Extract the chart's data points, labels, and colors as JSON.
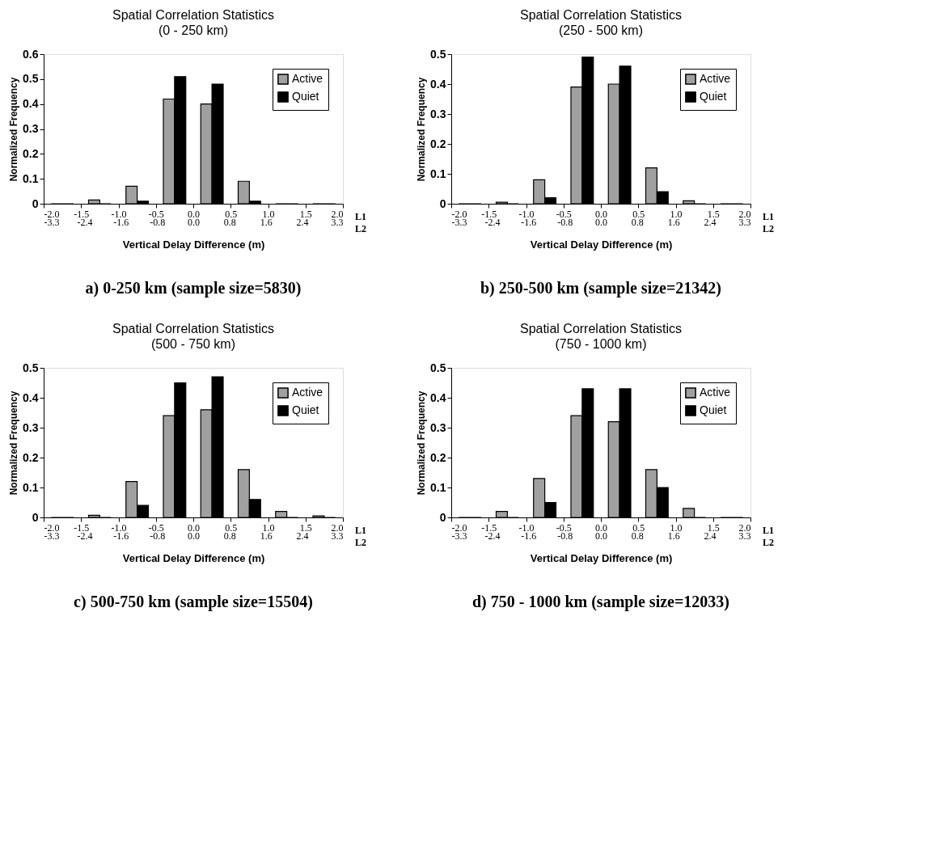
{
  "chart_data": [
    {
      "type": "histogram",
      "title": "Spatial Correlation Statistics",
      "subtitle": "(0 - 250 km)",
      "xlabel": "Vertical Delay Difference (m)",
      "ylabel": "Normalized Frequency",
      "bins": [
        -2.0,
        -1.5,
        -1.0,
        -0.5,
        0.0,
        0.5,
        1.0,
        1.5,
        2.0
      ],
      "series": [
        {
          "name": "Active",
          "color": "#a0a0a0",
          "values": [
            0,
            0.015,
            0.07,
            0.42,
            0.4,
            0.09,
            0,
            0
          ]
        },
        {
          "name": "Quiet",
          "color": "#000000",
          "values": [
            0,
            0,
            0.01,
            0.51,
            0.48,
            0.01,
            0,
            0
          ]
        }
      ],
      "xlim": [
        -2.0,
        2.0
      ],
      "ylim": [
        0,
        0.6
      ],
      "yticks": [
        0,
        0.1,
        0.2,
        0.3,
        0.4,
        0.5,
        0.6
      ],
      "xticks": [
        {
          "value": -2.0,
          "label": "-2.0"
        },
        {
          "value": -1.5,
          "label": "-1.5"
        },
        {
          "value": -1.0,
          "label": "-1.0"
        },
        {
          "value": -0.5,
          "label": "-0.5"
        },
        {
          "value": 0.0,
          "label": "0.0"
        },
        {
          "value": 0.5,
          "label": "0.5"
        },
        {
          "value": 1.0,
          "label": "1.0"
        },
        {
          "value": 1.5,
          "label": "1.5"
        },
        {
          "value": 2.0,
          "label": "2.0"
        }
      ],
      "x2lim": [
        -3.3,
        3.3
      ],
      "x2ticks": [
        {
          "value": -3.3,
          "label": "-3.3"
        },
        {
          "value": -2.4,
          "label": "-2.4"
        },
        {
          "value": -1.6,
          "label": "-1.6"
        },
        {
          "value": -0.8,
          "label": "-0.8"
        },
        {
          "value": 0.0,
          "label": "0.0"
        },
        {
          "value": 0.8,
          "label": "0.8"
        },
        {
          "value": 1.6,
          "label": "1.6"
        },
        {
          "value": 2.4,
          "label": "2.4"
        },
        {
          "value": 3.3,
          "label": "3.3"
        }
      ],
      "annotations": [
        "L1",
        "L2",
        "a) 0-250 km (sample size=5830)"
      ],
      "legend": "top right",
      "grid": false
    },
    {
      "type": "histogram",
      "title": "Spatial Correlation Statistics",
      "subtitle": "(250 - 500 km)",
      "xlabel": "Vertical Delay Difference (m)",
      "ylabel": "Normalized Frequency",
      "bins": [
        -2.0,
        -1.5,
        -1.0,
        -0.5,
        0.0,
        0.5,
        1.0,
        1.5,
        2.0
      ],
      "series": [
        {
          "name": "Active",
          "color": "#a0a0a0",
          "values": [
            0,
            0.005,
            0.08,
            0.39,
            0.4,
            0.12,
            0.01,
            0
          ]
        },
        {
          "name": "Quiet",
          "color": "#000000",
          "values": [
            0,
            0,
            0.02,
            0.49,
            0.46,
            0.04,
            0,
            0
          ]
        }
      ],
      "xlim": [
        -2.0,
        2.0
      ],
      "ylim": [
        0,
        0.5
      ],
      "yticks": [
        0,
        0.1,
        0.2,
        0.3,
        0.4,
        0.5
      ],
      "xticks": [
        {
          "value": -2.0,
          "label": "-2.0"
        },
        {
          "value": -1.5,
          "label": "-1.5"
        },
        {
          "value": -1.0,
          "label": "-1.0"
        },
        {
          "value": -0.5,
          "label": "-0.5"
        },
        {
          "value": 0.0,
          "label": "0.0"
        },
        {
          "value": 0.5,
          "label": "0.5"
        },
        {
          "value": 1.0,
          "label": "1.0"
        },
        {
          "value": 1.5,
          "label": "1.5"
        },
        {
          "value": 2.0,
          "label": "2.0"
        }
      ],
      "x2lim": [
        -3.3,
        3.3
      ],
      "x2ticks": [
        {
          "value": -3.3,
          "label": "-3.3"
        },
        {
          "value": -2.4,
          "label": "-2.4"
        },
        {
          "value": -1.6,
          "label": "-1.6"
        },
        {
          "value": -0.8,
          "label": "-0.8"
        },
        {
          "value": 0.0,
          "label": "0.0"
        },
        {
          "value": 0.8,
          "label": "0.8"
        },
        {
          "value": 1.6,
          "label": "1.6"
        },
        {
          "value": 2.4,
          "label": "2.4"
        },
        {
          "value": 3.3,
          "label": "3.3"
        }
      ],
      "annotations": [
        "L1",
        "L2",
        "b) 250-500 km (sample size=21342)"
      ],
      "legend": "top right",
      "grid": false
    },
    {
      "type": "histogram",
      "title": "Spatial Correlation Statistics",
      "subtitle": "(500 - 750 km)",
      "xlabel": "Vertical Delay Difference (m)",
      "ylabel": "Normalized Frequency",
      "bins": [
        -2.0,
        -1.5,
        -1.0,
        -0.5,
        0.0,
        0.5,
        1.0,
        1.5,
        2.0
      ],
      "series": [
        {
          "name": "Active",
          "color": "#a0a0a0",
          "values": [
            0,
            0.007,
            0.12,
            0.34,
            0.36,
            0.16,
            0.02,
            0.005
          ]
        },
        {
          "name": "Quiet",
          "color": "#000000",
          "values": [
            0,
            0,
            0.04,
            0.45,
            0.47,
            0.06,
            0,
            0
          ]
        }
      ],
      "xlim": [
        -2.0,
        2.0
      ],
      "ylim": [
        0,
        0.5
      ],
      "yticks": [
        0,
        0.1,
        0.2,
        0.3,
        0.4,
        0.5
      ],
      "xticks": [
        {
          "value": -2.0,
          "label": "-2.0"
        },
        {
          "value": -1.5,
          "label": "-1.5"
        },
        {
          "value": -1.0,
          "label": "-1.0"
        },
        {
          "value": -0.5,
          "label": "-0.5"
        },
        {
          "value": 0.0,
          "label": "0.0"
        },
        {
          "value": 0.5,
          "label": "0.5"
        },
        {
          "value": 1.0,
          "label": "1.0"
        },
        {
          "value": 1.5,
          "label": "1.5"
        },
        {
          "value": 2.0,
          "label": "2.0"
        }
      ],
      "x2lim": [
        -3.3,
        3.3
      ],
      "x2ticks": [
        {
          "value": -3.3,
          "label": "-3.3"
        },
        {
          "value": -2.4,
          "label": "-2.4"
        },
        {
          "value": -1.6,
          "label": "-1.6"
        },
        {
          "value": -0.8,
          "label": "-0.8"
        },
        {
          "value": 0.0,
          "label": "0.0"
        },
        {
          "value": 0.8,
          "label": "0.8"
        },
        {
          "value": 1.6,
          "label": "1.6"
        },
        {
          "value": 2.4,
          "label": "2.4"
        },
        {
          "value": 3.3,
          "label": "3.3"
        }
      ],
      "annotations": [
        "L1",
        "L2",
        "c) 500-750 km (sample size=15504)"
      ],
      "legend": "top right",
      "grid": false
    },
    {
      "type": "histogram",
      "title": "Spatial Correlation Statistics",
      "subtitle": "(750 - 1000 km)",
      "xlabel": "Vertical Delay Difference (m)",
      "ylabel": "Normalized Frequency",
      "bins": [
        -2.0,
        -1.5,
        -1.0,
        -0.5,
        0.0,
        0.5,
        1.0,
        1.5,
        2.0
      ],
      "series": [
        {
          "name": "Active",
          "color": "#a0a0a0",
          "values": [
            0,
            0.02,
            0.13,
            0.34,
            0.32,
            0.16,
            0.03,
            0
          ]
        },
        {
          "name": "Quiet",
          "color": "#000000",
          "values": [
            0,
            0,
            0.05,
            0.43,
            0.43,
            0.1,
            0,
            0
          ]
        }
      ],
      "xlim": [
        -2.0,
        2.0
      ],
      "ylim": [
        0,
        0.5
      ],
      "yticks": [
        0,
        0.1,
        0.2,
        0.3,
        0.4,
        0.5
      ],
      "xticks": [
        {
          "value": -2.0,
          "label": "-2.0"
        },
        {
          "value": -1.5,
          "label": "-1.5"
        },
        {
          "value": -1.0,
          "label": "-1.0"
        },
        {
          "value": -0.5,
          "label": "-0.5"
        },
        {
          "value": 0.0,
          "label": "0.0"
        },
        {
          "value": 0.5,
          "label": "0.5"
        },
        {
          "value": 1.0,
          "label": "1.0"
        },
        {
          "value": 1.5,
          "label": "1.5"
        },
        {
          "value": 2.0,
          "label": "2.0"
        }
      ],
      "x2lim": [
        -3.3,
        3.3
      ],
      "x2ticks": [
        {
          "value": -3.3,
          "label": "-3.3"
        },
        {
          "value": -2.4,
          "label": "-2.4"
        },
        {
          "value": -1.6,
          "label": "-1.6"
        },
        {
          "value": -0.8,
          "label": "-0.8"
        },
        {
          "value": 0.0,
          "label": "0.0"
        },
        {
          "value": 0.8,
          "label": "0.8"
        },
        {
          "value": 1.6,
          "label": "1.6"
        },
        {
          "value": 2.4,
          "label": "2.4"
        },
        {
          "value": 3.3,
          "label": "3.3"
        }
      ],
      "annotations": [
        "L1",
        "L2",
        "d) 750 - 1000 km (sample size=12033)"
      ],
      "legend": "top right",
      "grid": false
    }
  ]
}
